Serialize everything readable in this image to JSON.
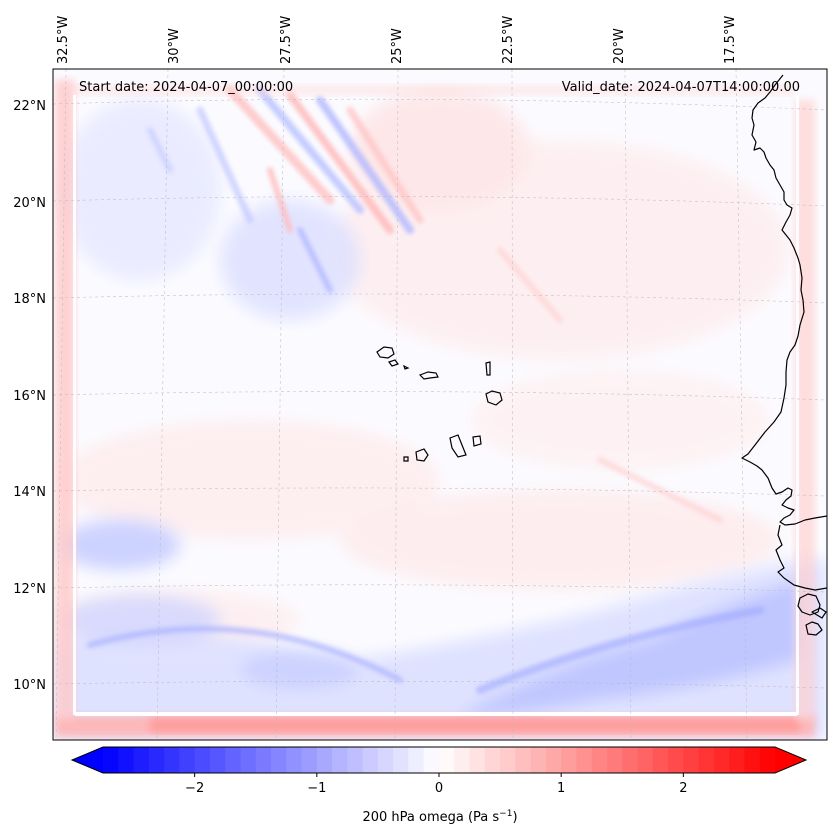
{
  "map": {
    "start_date_text": "Start date: 2024-04-07_00:00:00",
    "valid_date_text": "Valid_date: 2024-04-07T14:00:00.00",
    "lon_ticks": [
      "32.5°W",
      "30°W",
      "27.5°W",
      "25°W",
      "22.5°W",
      "20°W",
      "17.5°W"
    ],
    "lat_ticks": [
      "22°N",
      "20°N",
      "18°N",
      "16°N",
      "14°N",
      "12°N",
      "10°N"
    ],
    "field_colors": {
      "negative": "#0000ff",
      "neutral": "#ffffff",
      "positive": "#ff0000"
    }
  },
  "colorbar": {
    "ticks": [
      "−2",
      "−1",
      "0",
      "1",
      "2"
    ],
    "tick_values": [
      -2,
      -1,
      0,
      1,
      2
    ],
    "range": [
      -2.75,
      2.75
    ],
    "label": "200 hPa omega (Pa s",
    "label_sup": "−1",
    "label_end": ")"
  }
}
